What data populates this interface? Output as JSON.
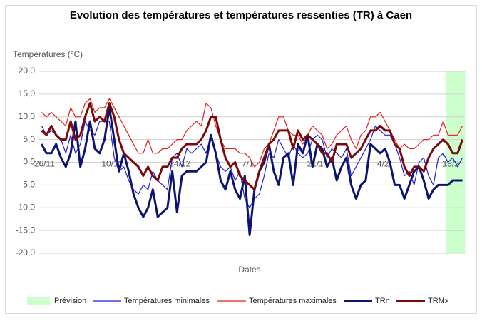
{
  "chart_data": {
    "type": "line",
    "title": "Evolution des températures et températures ressenties (TR) à Caen",
    "y_label": "Températures (°C)",
    "x_label": "Dates",
    "categories": [
      "26/11",
      null,
      null,
      null,
      null,
      null,
      null,
      null,
      null,
      null,
      null,
      null,
      null,
      null,
      "10/12",
      null,
      null,
      null,
      null,
      null,
      null,
      null,
      null,
      null,
      null,
      null,
      null,
      null,
      "24/12",
      null,
      null,
      null,
      null,
      null,
      null,
      null,
      null,
      null,
      null,
      null,
      null,
      null,
      "7/1",
      null,
      null,
      null,
      null,
      null,
      null,
      null,
      null,
      null,
      null,
      null,
      null,
      null,
      "21/1",
      null,
      null,
      null,
      null,
      null,
      null,
      null,
      null,
      null,
      null,
      null,
      null,
      null,
      "4/2",
      null,
      null,
      null,
      null,
      null,
      null,
      null,
      null,
      null,
      null,
      null,
      null,
      null,
      "18/2",
      null,
      null,
      null
    ],
    "ylim": [
      -20,
      20
    ],
    "yticks": [
      {
        "value": -20,
        "label": "-20,0"
      },
      {
        "value": -15,
        "label": "-15,0"
      },
      {
        "value": -10,
        "label": "-10,0"
      },
      {
        "value": -5,
        "label": "-5,0"
      },
      {
        "value": 0,
        "label": "0,0"
      },
      {
        "value": 5,
        "label": "5,0"
      },
      {
        "value": 10,
        "label": "10,0"
      },
      {
        "value": 15,
        "label": "15,0"
      },
      {
        "value": 20,
        "label": "20,0"
      }
    ],
    "grid": true,
    "legend": "bottom",
    "series": [
      {
        "name": "Prévision",
        "type": "bar",
        "color": "#ccffcc",
        "values": [
          null,
          null,
          null,
          null,
          null,
          null,
          null,
          null,
          null,
          null,
          null,
          null,
          null,
          null,
          null,
          null,
          null,
          null,
          null,
          null,
          null,
          null,
          null,
          null,
          null,
          null,
          null,
          null,
          null,
          null,
          null,
          null,
          null,
          null,
          null,
          null,
          null,
          null,
          null,
          null,
          null,
          null,
          null,
          null,
          null,
          null,
          null,
          null,
          null,
          null,
          null,
          null,
          null,
          null,
          null,
          null,
          null,
          null,
          null,
          null,
          null,
          null,
          null,
          null,
          null,
          null,
          null,
          null,
          null,
          null,
          null,
          null,
          null,
          null,
          null,
          null,
          null,
          null,
          null,
          null,
          null,
          null,
          null,
          null,
          20,
          20,
          20,
          20
        ]
      },
      {
        "name": "Températures minimales",
        "type": "line",
        "color": "#1f1fd6",
        "line_width": 1.2,
        "values": [
          8,
          6,
          7,
          6,
          5,
          2,
          6,
          2,
          4,
          9,
          7,
          6,
          9,
          9,
          9,
          1,
          -2,
          -1,
          -4,
          -6,
          -7,
          -5,
          -6,
          -2,
          -4,
          -5,
          -6,
          1,
          2,
          -1,
          3,
          2,
          3,
          4,
          2,
          6,
          2,
          -1,
          -2,
          -1,
          -4,
          -2,
          -8,
          -10,
          -8,
          -7,
          -3,
          2,
          1,
          5,
          3,
          1,
          4,
          2,
          1,
          2,
          5,
          6,
          5,
          1,
          3,
          2,
          1,
          3,
          -3,
          -1,
          1,
          3,
          5,
          8,
          7,
          6,
          6,
          4,
          1,
          -3,
          -2,
          -5,
          0,
          1,
          -3,
          -5,
          1,
          2,
          0,
          1,
          -1,
          1
        ]
      },
      {
        "name": "Températures maximales",
        "type": "line",
        "color": "#e81c1c",
        "line_width": 1.2,
        "values": [
          11,
          10,
          11,
          10,
          9,
          8,
          12,
          10,
          10,
          13,
          14,
          11,
          12,
          12,
          14,
          12,
          10,
          8,
          6,
          4,
          2,
          2,
          5,
          2,
          2,
          3,
          3,
          4,
          5,
          5,
          7,
          8,
          9,
          8,
          13,
          12,
          8,
          5,
          3,
          3,
          3,
          2,
          2,
          1,
          -1,
          0,
          3,
          4,
          7,
          10,
          10,
          7,
          6,
          6,
          4,
          6,
          8,
          7,
          6,
          3,
          4,
          6,
          7,
          8,
          5,
          3,
          6,
          7,
          10,
          10,
          11,
          9,
          7,
          5,
          3,
          4,
          3,
          3,
          4,
          5,
          5,
          6,
          6,
          9,
          6,
          6,
          6,
          8
        ]
      },
      {
        "name": "TRn",
        "type": "line",
        "color": "#0d1470",
        "line_width": 3,
        "values": [
          4,
          2,
          2,
          4,
          1,
          -1,
          2,
          9,
          -1,
          3,
          9,
          3,
          2,
          5,
          12,
          5,
          -2,
          2,
          -2,
          -7,
          -10,
          -12,
          -10,
          -6,
          -12,
          -11,
          -10,
          -2,
          -11,
          -3,
          -2,
          -2,
          -2,
          -1,
          0,
          6,
          2,
          -4,
          -6,
          -2,
          -6,
          -8,
          -3,
          -16,
          -6,
          -2,
          0,
          4,
          -2,
          -5,
          1,
          2,
          -5,
          4,
          2,
          6,
          -1,
          4,
          3,
          -1,
          1,
          -4,
          -1,
          1,
          -5,
          -8,
          -5,
          -4,
          4,
          3,
          2,
          3,
          0,
          -5,
          -5,
          -8,
          -5,
          -2,
          -1,
          -4,
          -8,
          -6,
          -5,
          -5,
          -5,
          -4,
          -4,
          -4
        ]
      },
      {
        "name": "TRMx",
        "type": "line",
        "color": "#7a0a0a",
        "line_width": 3,
        "values": [
          7,
          6,
          8,
          6,
          5,
          5,
          9,
          5,
          6,
          10,
          13,
          9,
          10,
          9,
          13,
          10,
          5,
          2,
          1,
          0,
          -1,
          -3,
          -1,
          -3,
          -4,
          -1,
          -1,
          1,
          1,
          3,
          4,
          4,
          4,
          5,
          7,
          10,
          10,
          5,
          1,
          -1,
          0,
          -3,
          -4,
          -5,
          -6,
          -2,
          1,
          4,
          5,
          7,
          7,
          7,
          3,
          7,
          5,
          6,
          5,
          4,
          2,
          2,
          0,
          4,
          4,
          4,
          1,
          2,
          3,
          5,
          7,
          7,
          8,
          7,
          7,
          4,
          3,
          -1,
          -3,
          -1,
          -1,
          -2,
          1,
          3,
          4,
          5,
          4,
          2,
          2,
          5
        ]
      }
    ]
  }
}
